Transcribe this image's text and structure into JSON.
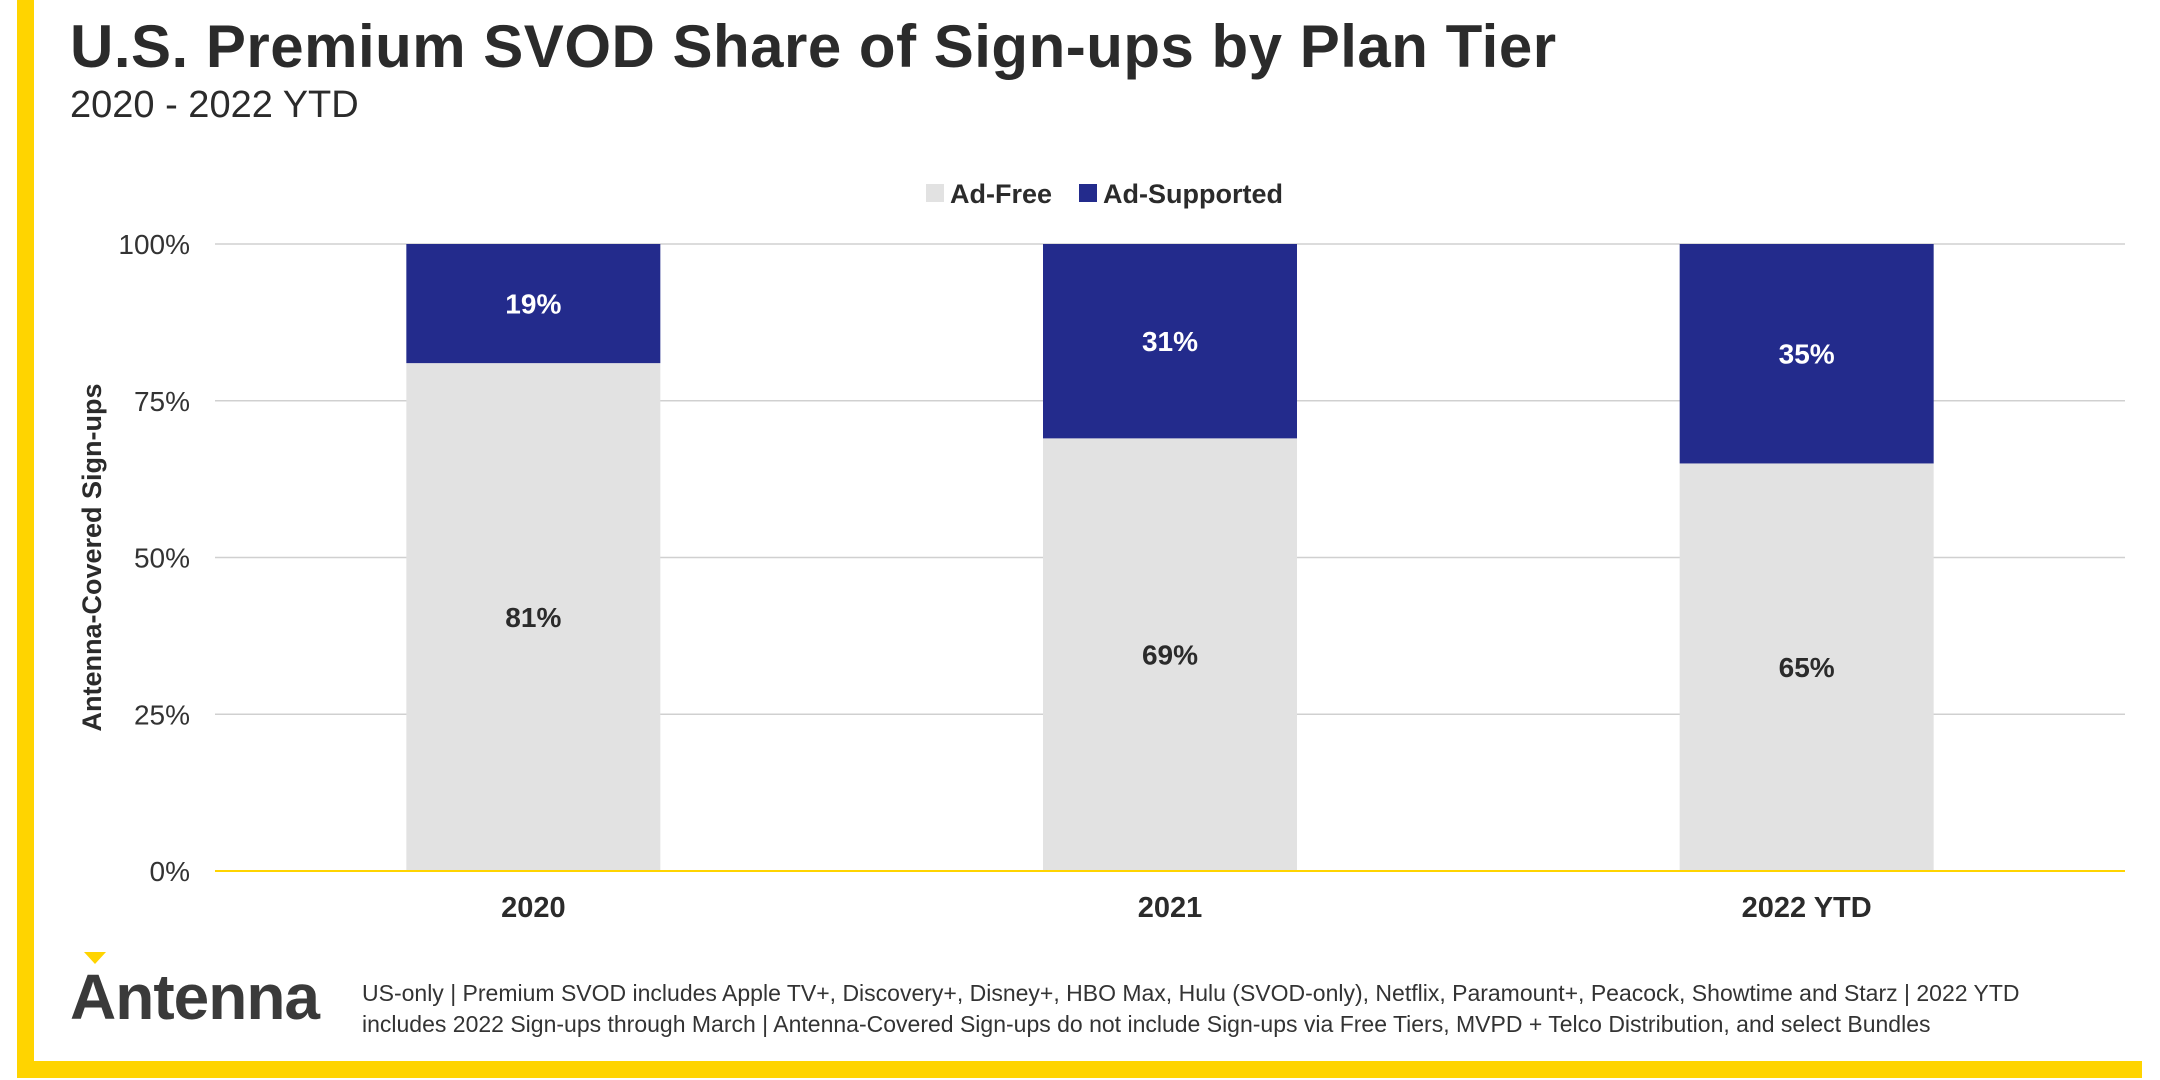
{
  "title": "U.S. Premium SVOD Share of Sign-ups by Plan Tier",
  "subtitle": "2020 - 2022 YTD",
  "logo": "Antenna",
  "footnote": "US-only | Premium SVOD includes Apple TV+, Discovery+, Disney+, HBO Max, Hulu (SVOD-only), Netflix, Paramount+, Peacock, Showtime and Starz | 2022 YTD includes 2022 Sign-ups through March | Antenna-Covered Sign-ups do not include Sign-ups via Free Tiers, MVPD + Telco Distribution, and select Bundles",
  "colors": {
    "accent": "#FFD400",
    "ad_free": "#E2E2E2",
    "ad_supported": "#232B8C",
    "text": "#2b2b2b",
    "grid": "#D0D0D0"
  },
  "chart_data": {
    "type": "bar",
    "stacked": true,
    "categories": [
      "2020",
      "2021",
      "2022 YTD"
    ],
    "series": [
      {
        "name": "Ad-Free",
        "values": [
          81,
          69,
          65
        ],
        "labels": [
          "81%",
          "69%",
          "65%"
        ]
      },
      {
        "name": "Ad-Supported",
        "values": [
          19,
          31,
          35
        ],
        "labels": [
          "19%",
          "31%",
          "35%"
        ]
      }
    ],
    "ylabel": "Antenna-Covered Sign-ups",
    "xlabel": "",
    "ylim": [
      0,
      100
    ],
    "yticks": [
      0,
      25,
      50,
      75,
      100
    ],
    "ytick_labels": [
      "0%",
      "25%",
      "50%",
      "75%",
      "100%"
    ],
    "legend": "top-center",
    "grid": true
  }
}
